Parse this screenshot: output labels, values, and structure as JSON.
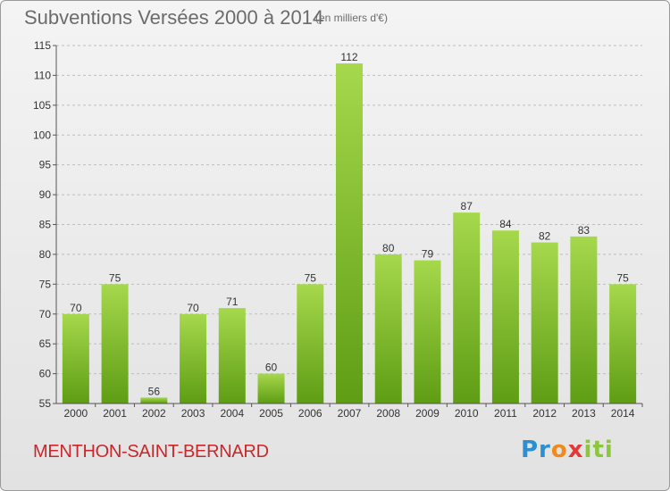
{
  "header": {
    "title": "Subventions Versées 2000 à 2014",
    "unit": "(en milliers d'€)"
  },
  "footer": {
    "commune": "MENTHON-SAINT-BERNARD",
    "logo": "Proxiti"
  },
  "chart_data": {
    "type": "bar",
    "title": "Subventions Versées 2000 à 2014",
    "subtitle": "(en milliers d'€)",
    "categories": [
      "2000",
      "2001",
      "2002",
      "2003",
      "2004",
      "2005",
      "2006",
      "2007",
      "2008",
      "2009",
      "2010",
      "2011",
      "2012",
      "2013",
      "2014"
    ],
    "values": [
      70,
      75,
      56,
      70,
      71,
      60,
      75,
      112,
      80,
      79,
      87,
      84,
      82,
      83,
      75
    ],
    "xlabel": "",
    "ylabel": "",
    "ylim": [
      55,
      115
    ],
    "yticks": [
      55,
      60,
      65,
      70,
      75,
      80,
      85,
      90,
      95,
      100,
      105,
      110,
      115
    ],
    "grid": "horizontal dashed",
    "legend": "none",
    "colors": {
      "bar_light": "#a6d84c",
      "bar_dark": "#5e9d14",
      "grid": "#bdbdbd",
      "axis": "#555555",
      "title": "#6b6b6b",
      "commune": "#c8282b"
    }
  }
}
